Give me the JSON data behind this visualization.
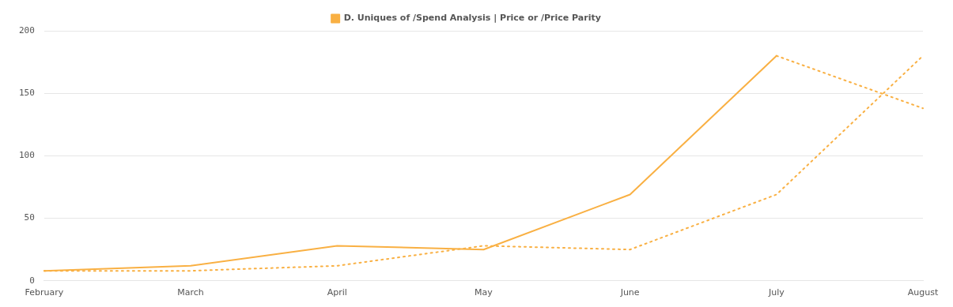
{
  "chart_data": {
    "type": "line",
    "categories": [
      "February",
      "March",
      "April",
      "May",
      "June",
      "July",
      "August"
    ],
    "series": [
      {
        "name": "D. Uniques of /Spend Analysis | Price or /Price Parity",
        "color": "#f9b043",
        "line_style": "solid",
        "values": [
          8,
          12,
          28,
          25,
          69,
          180,
          null
        ]
      },
      {
        "color": "#f9b043",
        "line_style": "dotted",
        "values": [
          null,
          null,
          null,
          null,
          null,
          180,
          138
        ]
      },
      {
        "color": "#f9b043",
        "line_style": "dotted",
        "values": [
          8,
          8,
          12,
          28,
          25,
          69,
          180
        ]
      }
    ],
    "ylim": [
      0,
      200
    ],
    "yticks": [
      0,
      50,
      100,
      150,
      200
    ],
    "grid": "y",
    "legend": "top",
    "marker": "none"
  }
}
